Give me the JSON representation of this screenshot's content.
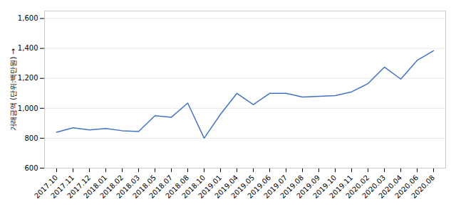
{
  "chart_data": {
    "type": "line",
    "ylabel": "거래금액 (단위:백만원)",
    "categories": [
      "2017.10",
      "2017.11",
      "2017.12",
      "2018.01",
      "2018.02",
      "2018.03",
      "2018.05",
      "2018.07",
      "2018.08",
      "2018.10",
      "2019.01",
      "2019.04",
      "2019.05",
      "2019.06",
      "2019.07",
      "2019.08",
      "2019.09",
      "2019.10",
      "2019.11",
      "2020.02",
      "2020.03",
      "2020.04",
      "2020.06",
      "2020.08"
    ],
    "values": [
      840,
      870,
      855,
      865,
      850,
      845,
      950,
      940,
      1035,
      800,
      960,
      1100,
      1025,
      1100,
      1100,
      1075,
      1080,
      1085,
      1110,
      1165,
      1275,
      1195,
      1320,
      1385
    ],
    "color": "#4472c4",
    "ylim": [
      600,
      1650
    ],
    "yticks": [
      600,
      800,
      {
        "value": 1000,
        "label": "1,000"
      },
      {
        "value": 1200,
        "label": "1,200"
      },
      {
        "value": 1400,
        "label": "1,400"
      },
      {
        "value": 1600,
        "label": "1,600"
      }
    ],
    "grid": true
  }
}
